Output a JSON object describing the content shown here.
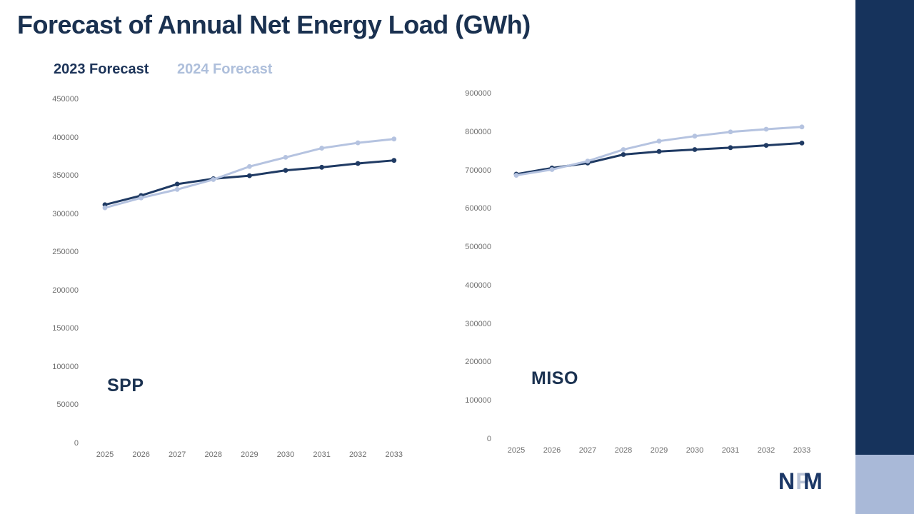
{
  "slide": {
    "title": "Forecast of Annual Net Energy Load (GWh)"
  },
  "legend": {
    "items": [
      {
        "label": "2023 Forecast",
        "color": "#1d3459"
      },
      {
        "label": "2024 Forecast",
        "color": "#aebfdb"
      }
    ]
  },
  "chart_data": [
    {
      "type": "line",
      "name": "SPP",
      "x": [
        2025,
        2026,
        2027,
        2028,
        2029,
        2030,
        2031,
        2032,
        2033
      ],
      "yticks": [
        0,
        50000,
        100000,
        150000,
        200000,
        250000,
        300000,
        350000,
        400000,
        450000
      ],
      "ylim": [
        0,
        450000
      ],
      "grid": false,
      "legend_position": "top-left-of-page-shared",
      "series": [
        {
          "name": "2023 Forecast",
          "color": "#1f3a63",
          "values": [
            312000,
            324000,
            339000,
            346000,
            350000,
            357000,
            361000,
            366000,
            370000
          ]
        },
        {
          "name": "2024 Forecast",
          "color": "#b5c3e0",
          "values": [
            308000,
            321000,
            332000,
            345000,
            362000,
            374000,
            386000,
            393000,
            398000
          ]
        }
      ]
    },
    {
      "type": "line",
      "name": "MISO",
      "x": [
        2025,
        2026,
        2027,
        2028,
        2029,
        2030,
        2031,
        2032,
        2033
      ],
      "yticks": [
        0,
        100000,
        200000,
        300000,
        400000,
        500000,
        600000,
        700000,
        800000,
        900000
      ],
      "ylim": [
        0,
        900000
      ],
      "grid": false,
      "legend_position": "top-left-of-page-shared",
      "series": [
        {
          "name": "2023 Forecast",
          "color": "#1f3a63",
          "values": [
            690000,
            706000,
            719000,
            741000,
            749000,
            754000,
            759000,
            765000,
            771000
          ]
        },
        {
          "name": "2024 Forecast",
          "color": "#b5c3e0",
          "values": [
            687000,
            702000,
            724000,
            754000,
            776000,
            789000,
            800000,
            807000,
            813000
          ]
        }
      ]
    }
  ],
  "logo": {
    "letters": [
      "N",
      "P",
      "M"
    ],
    "letter_colors": [
      "#1b3766",
      "#b9c3d6",
      "#1b3766"
    ]
  },
  "colors": {
    "title_navy": "#1a3150",
    "axis_text": "#6e6e6e",
    "accent_bar_dark": "#16335c",
    "accent_bar_light": "#a9b9d8"
  }
}
